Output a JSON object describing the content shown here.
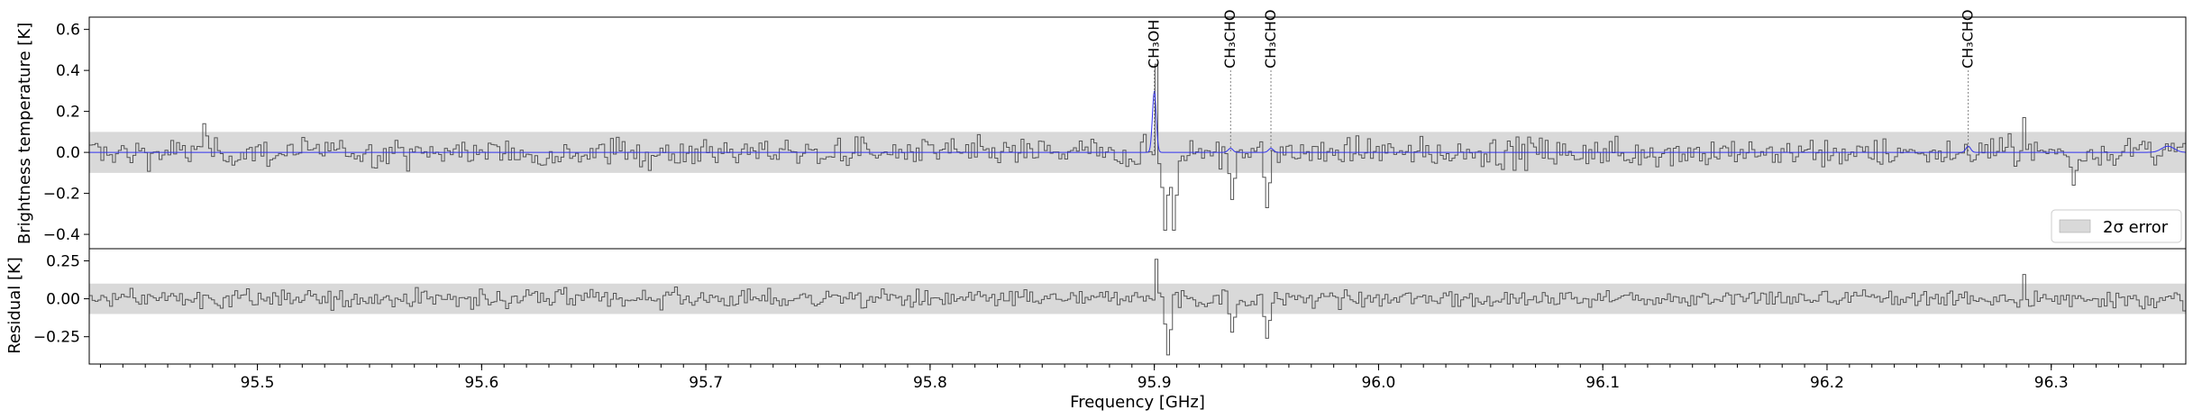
{
  "chart_data": [
    {
      "type": "line",
      "panel": "main",
      "ylabel": "Brightness temperature [K]",
      "xlim": [
        95.425,
        96.36
      ],
      "ylim": [
        -0.47,
        0.66
      ],
      "yticks": [
        -0.4,
        -0.2,
        0.0,
        0.2,
        0.4,
        0.6
      ],
      "ytick_labels": [
        "−0.4",
        "−0.2",
        "0.0",
        "0.2",
        "0.4",
        "0.6"
      ],
      "error_band": [
        -0.1,
        0.1
      ],
      "legend": {
        "entries": [
          "2σ error"
        ],
        "placement": "lower right"
      },
      "series": [
        {
          "kind": "observed spectrum",
          "style": "steps",
          "color": "#555555"
        },
        {
          "kind": "model",
          "style": "line",
          "color": "#3333ee"
        }
      ],
      "line_ids": [
        {
          "freq": 95.9,
          "label": "CH₃OH"
        },
        {
          "freq": 95.934,
          "label": "CH₃CHO"
        },
        {
          "freq": 95.952,
          "label": "CH₃CHO"
        },
        {
          "freq": 96.263,
          "label": "CH₃CHO"
        }
      ],
      "features": [
        {
          "freq": 95.9,
          "peak_model": 0.3,
          "peak_obs": 0.43
        },
        {
          "freq": 95.904,
          "dip_obs": -0.38
        },
        {
          "freq": 95.908,
          "dip_obs": -0.38
        },
        {
          "freq": 95.934,
          "dip_obs": -0.23
        },
        {
          "freq": 95.95,
          "dip_obs": -0.27
        },
        {
          "freq": 96.287,
          "peak_obs": 0.17
        },
        {
          "freq": 96.31,
          "dip_obs": -0.16
        },
        {
          "freq": 95.476,
          "peak_obs": 0.14
        }
      ]
    },
    {
      "type": "line",
      "panel": "residual",
      "ylabel": "Residual [K]",
      "xlabel": "Frequency [GHz]",
      "xlim": [
        95.425,
        96.36
      ],
      "ylim": [
        -0.43,
        0.33
      ],
      "yticks": [
        -0.25,
        0.0,
        0.25
      ],
      "ytick_labels": [
        "−0.25",
        "0.00",
        "0.25"
      ],
      "xticks": [
        95.5,
        95.6,
        95.7,
        95.8,
        95.9,
        96.0,
        96.1,
        96.2,
        96.3
      ],
      "xtick_labels": [
        "95.5",
        "95.6",
        "95.7",
        "95.8",
        "95.9",
        "96.0",
        "96.1",
        "96.2",
        "96.3"
      ],
      "error_band": [
        -0.1,
        0.1
      ],
      "series": [
        {
          "kind": "residual spectrum",
          "style": "steps",
          "color": "#555555"
        }
      ],
      "features": [
        {
          "freq": 95.9,
          "peak_obs": 0.26
        },
        {
          "freq": 95.905,
          "dip_obs": -0.37
        },
        {
          "freq": 95.934,
          "dip_obs": -0.22
        },
        {
          "freq": 95.95,
          "dip_obs": -0.26
        },
        {
          "freq": 96.287,
          "peak_obs": 0.16
        }
      ]
    }
  ]
}
